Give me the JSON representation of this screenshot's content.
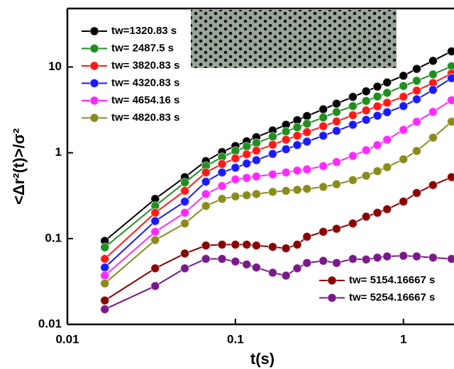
{
  "chart_data": {
    "type": "line",
    "log_x": true,
    "log_y": true,
    "x_label": "t(s)",
    "y_label": "<Δr²(t)>/σ²",
    "xlim": [
      0.01,
      2
    ],
    "ylim": [
      0.01,
      48
    ],
    "xticks": [
      0.01,
      0.1,
      1
    ],
    "yticks": [
      0.01,
      0.1,
      1,
      10
    ],
    "x": [
      0.0167,
      0.0333,
      0.05,
      0.0667,
      0.0833,
      0.1,
      0.1167,
      0.1333,
      0.1667,
      0.2,
      0.2333,
      0.2667,
      0.3333,
      0.4,
      0.5,
      0.6,
      0.7,
      0.8,
      1,
      1.2,
      1.5,
      1.9333
    ],
    "series": [
      {
        "name": "tw=1320.83 s",
        "color": "#000000",
        "legend": "upper left",
        "values": [
          0.094,
          0.29,
          0.52,
          0.8,
          1.02,
          1.2,
          1.36,
          1.52,
          1.82,
          2.12,
          2.4,
          2.68,
          3.21,
          3.73,
          4.48,
          5.2,
          5.9,
          6.6,
          7.9,
          9.5,
          11.8,
          15.2
        ]
      },
      {
        "name": "tw= 2487.5 s",
        "color": "#1f8f1f",
        "legend": "upper left",
        "values": [
          0.079,
          0.24,
          0.45,
          0.7,
          0.89,
          1.05,
          1.18,
          1.3,
          1.54,
          1.77,
          1.98,
          2.18,
          2.58,
          2.98,
          3.5,
          4.02,
          4.52,
          5.0,
          6.0,
          6.9,
          8.2,
          10.2
        ]
      },
      {
        "name": "tw= 3820.83 s",
        "color": "#ff1a1a",
        "legend": "upper left",
        "values": [
          0.058,
          0.2,
          0.36,
          0.59,
          0.74,
          0.86,
          0.96,
          1.06,
          1.24,
          1.42,
          1.58,
          1.74,
          2.04,
          2.32,
          2.74,
          3.12,
          3.48,
          3.83,
          4.5,
          5.3,
          6.5,
          8.4
        ]
      },
      {
        "name": "tw= 4320.83 s",
        "color": "#1a1aff",
        "legend": "upper left",
        "values": [
          0.046,
          0.16,
          0.27,
          0.46,
          0.59,
          0.67,
          0.75,
          0.82,
          0.97,
          1.1,
          1.23,
          1.35,
          1.58,
          1.8,
          2.12,
          2.42,
          2.7,
          2.97,
          3.5,
          4.2,
          5.4,
          7.4
        ]
      },
      {
        "name": "tw= 4654.16 s",
        "color": "#ff2aff",
        "legend": "upper left",
        "values": [
          0.037,
          0.12,
          0.2,
          0.33,
          0.41,
          0.49,
          0.51,
          0.53,
          0.56,
          0.59,
          0.62,
          0.64,
          0.7,
          0.78,
          0.92,
          1.07,
          1.23,
          1.42,
          1.85,
          2.3,
          3.0,
          4.1
        ]
      },
      {
        "name": "tw= 4820.83 s",
        "color": "#8b8b1a",
        "legend": "upper left",
        "values": [
          0.03,
          0.096,
          0.15,
          0.24,
          0.29,
          0.31,
          0.32,
          0.33,
          0.35,
          0.36,
          0.37,
          0.38,
          0.4,
          0.43,
          0.48,
          0.54,
          0.61,
          0.68,
          0.84,
          1.05,
          1.5,
          2.3
        ]
      },
      {
        "name": "tw= 5154.16667 s",
        "color": "#8b0000",
        "legend": "lower right",
        "values": [
          0.019,
          0.045,
          0.067,
          0.083,
          0.085,
          0.085,
          0.085,
          0.083,
          0.08,
          0.077,
          0.085,
          0.105,
          0.12,
          0.13,
          0.15,
          0.18,
          0.2,
          0.22,
          0.27,
          0.34,
          0.42,
          0.52
        ]
      },
      {
        "name": "tw= 5254.16667 s",
        "color": "#7a1a8a",
        "legend": "lower right",
        "values": [
          0.015,
          0.028,
          0.045,
          0.058,
          0.058,
          0.054,
          0.05,
          0.046,
          0.04,
          0.037,
          0.045,
          0.052,
          0.055,
          0.052,
          0.058,
          0.057,
          0.06,
          0.062,
          0.063,
          0.062,
          0.06,
          0.058
        ]
      }
    ]
  }
}
